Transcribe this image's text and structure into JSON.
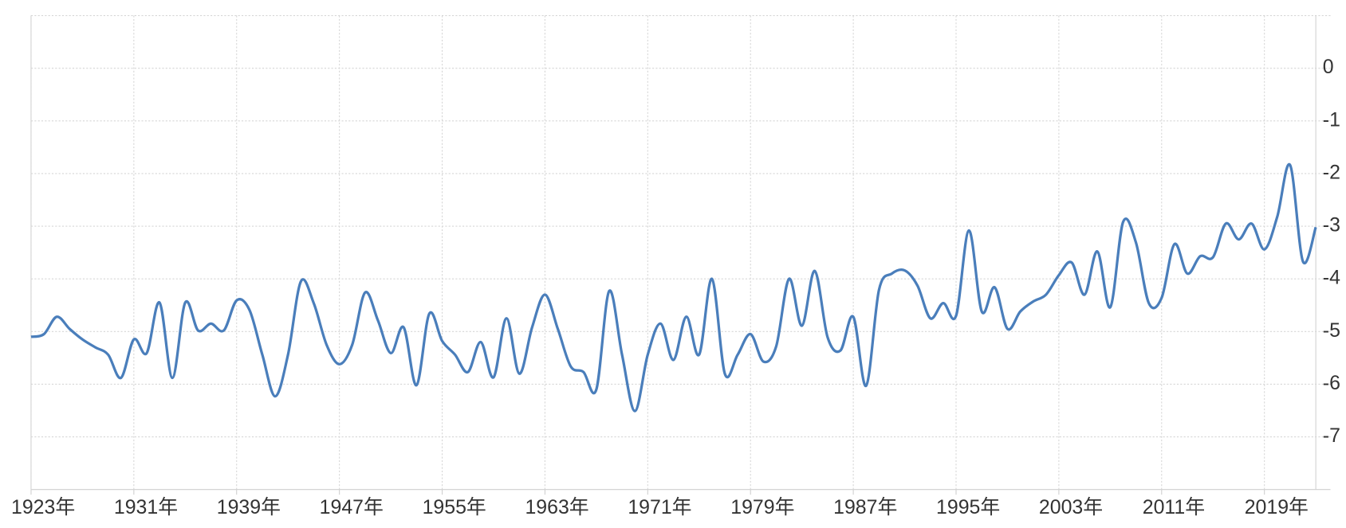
{
  "chart_data": {
    "type": "line",
    "x": [
      1923,
      1924,
      1925,
      1926,
      1927,
      1928,
      1929,
      1930,
      1931,
      1932,
      1933,
      1934,
      1935,
      1936,
      1937,
      1938,
      1939,
      1940,
      1941,
      1942,
      1943,
      1944,
      1945,
      1946,
      1947,
      1948,
      1949,
      1950,
      1951,
      1952,
      1953,
      1954,
      1955,
      1956,
      1957,
      1958,
      1959,
      1960,
      1961,
      1962,
      1963,
      1964,
      1965,
      1966,
      1967,
      1968,
      1969,
      1970,
      1971,
      1972,
      1973,
      1974,
      1975,
      1976,
      1977,
      1978,
      1979,
      1980,
      1981,
      1982,
      1983,
      1984,
      1985,
      1986,
      1987,
      1988,
      1989,
      1990,
      1991,
      1992,
      1993,
      1994,
      1995,
      1996,
      1997,
      1998,
      1999,
      2000,
      2001,
      2002,
      2003,
      2004,
      2005,
      2006,
      2007,
      2008,
      2009,
      2010,
      2011,
      2012,
      2013,
      2014,
      2015,
      2016,
      2017,
      2018,
      2019,
      2020,
      2021,
      2022,
      2023
    ],
    "series": [
      {
        "color": "#4a7ebb",
        "values": [
          -5.1,
          -5.05,
          -4.72,
          -4.95,
          -5.15,
          -5.3,
          -5.44,
          -5.88,
          -5.15,
          -5.41,
          -4.45,
          -5.88,
          -4.45,
          -4.98,
          -4.85,
          -4.98,
          -4.41,
          -4.59,
          -5.44,
          -6.23,
          -5.44,
          -4.05,
          -4.46,
          -5.25,
          -5.62,
          -5.25,
          -4.26,
          -4.79,
          -5.41,
          -4.92,
          -6.02,
          -4.66,
          -5.18,
          -5.44,
          -5.77,
          -5.2,
          -5.87,
          -4.75,
          -5.8,
          -4.92,
          -4.3,
          -4.95,
          -5.66,
          -5.77,
          -6.1,
          -4.23,
          -5.44,
          -6.51,
          -5.44,
          -4.85,
          -5.54,
          -4.72,
          -5.44,
          -4.0,
          -5.8,
          -5.44,
          -5.05,
          -5.57,
          -5.28,
          -4.0,
          -4.89,
          -3.85,
          -5.11,
          -5.36,
          -4.72,
          -6.03,
          -4.21,
          -3.9,
          -3.84,
          -4.13,
          -4.75,
          -4.46,
          -4.7,
          -3.08,
          -4.62,
          -4.16,
          -4.95,
          -4.62,
          -4.43,
          -4.3,
          -3.93,
          -3.69,
          -4.3,
          -3.48,
          -4.54,
          -2.92,
          -3.31,
          -4.46,
          -4.36,
          -3.34,
          -3.9,
          -3.57,
          -3.59,
          -2.95,
          -3.25,
          -2.95,
          -3.44,
          -2.82,
          -1.84,
          -3.67,
          -3.02
        ]
      }
    ],
    "xlim": [
      1923,
      2023
    ],
    "xticks": [
      {
        "value": 1923,
        "label": "1923年"
      },
      {
        "value": 1931,
        "label": "1931年"
      },
      {
        "value": 1939,
        "label": "1939年"
      },
      {
        "value": 1947,
        "label": "1947年"
      },
      {
        "value": 1955,
        "label": "1955年"
      },
      {
        "value": 1963,
        "label": "1963年"
      },
      {
        "value": 1971,
        "label": "1971年"
      },
      {
        "value": 1979,
        "label": "1979年"
      },
      {
        "value": 1987,
        "label": "1987年"
      },
      {
        "value": 1995,
        "label": "1995年"
      },
      {
        "value": 2003,
        "label": "2003年"
      },
      {
        "value": 2011,
        "label": "2011年"
      },
      {
        "value": 2019,
        "label": "2019年"
      }
    ],
    "ylim": [
      -8,
      1
    ],
    "yticks": [
      -7,
      -6,
      -5,
      -4,
      -3,
      -2,
      -1,
      0
    ],
    "y_axis_side": "right",
    "grid": true
  }
}
